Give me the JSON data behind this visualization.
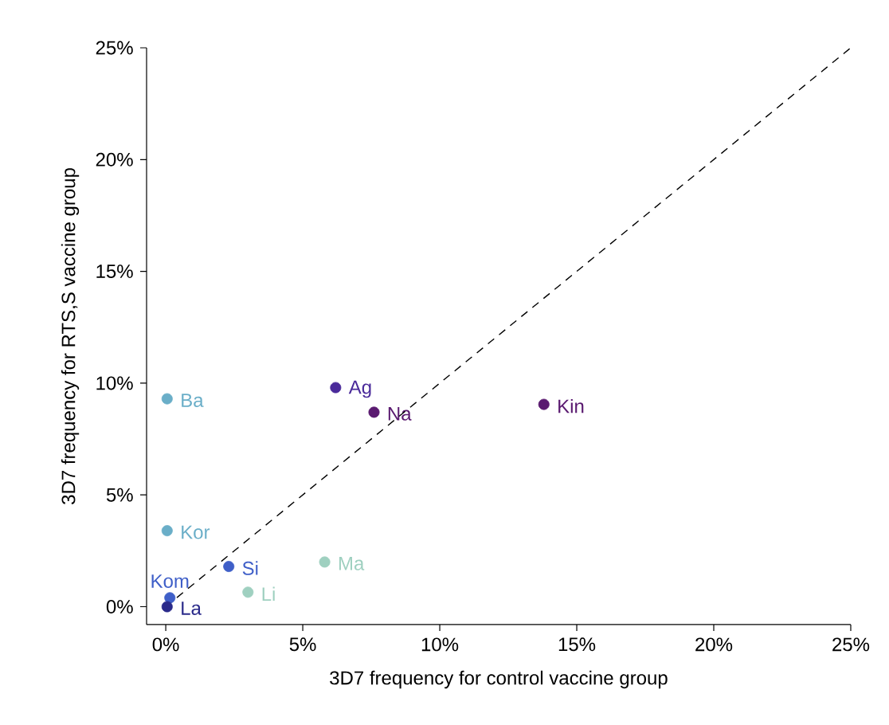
{
  "chart_data": {
    "type": "scatter",
    "xlabel": "3D7 frequency for control vaccine group",
    "ylabel": "3D7 frequency for RTS,S vaccine group",
    "marker": "circle",
    "grid": false,
    "xlim": [
      -0.7,
      25
    ],
    "ylim": [
      -0.8,
      25
    ],
    "xticks": [
      {
        "value": 0,
        "label": "0%"
      },
      {
        "value": 5,
        "label": "5%"
      },
      {
        "value": 10,
        "label": "10%"
      },
      {
        "value": 15,
        "label": "15%"
      },
      {
        "value": 20,
        "label": "20%"
      },
      {
        "value": 25,
        "label": "25%"
      }
    ],
    "yticks": [
      {
        "value": 0,
        "label": "0%"
      },
      {
        "value": 5,
        "label": "5%"
      },
      {
        "value": 10,
        "label": "10%"
      },
      {
        "value": 15,
        "label": "15%"
      },
      {
        "value": 20,
        "label": "20%"
      },
      {
        "value": 25,
        "label": "25%"
      }
    ],
    "series": [
      {
        "name": "Ba",
        "color": "#6aaec8",
        "x": [
          0.05
        ],
        "values": [
          9.3
        ]
      },
      {
        "name": "Kor",
        "color": "#6aaec8",
        "x": [
          0.05
        ],
        "values": [
          3.4
        ]
      },
      {
        "name": "Kom",
        "color": "#3f5fc8",
        "x": [
          0.15
        ],
        "values": [
          0.4
        ]
      },
      {
        "name": "La",
        "color": "#2a2a8a",
        "x": [
          0.05
        ],
        "values": [
          0
        ]
      },
      {
        "name": "Si",
        "color": "#3f5fc8",
        "x": [
          2.3
        ],
        "values": [
          1.8
        ]
      },
      {
        "name": "Li",
        "color": "#9fd0c0",
        "x": [
          3.0
        ],
        "values": [
          0.65
        ]
      },
      {
        "name": "Ma",
        "color": "#9fd0c0",
        "x": [
          5.8
        ],
        "values": [
          2.0
        ]
      },
      {
        "name": "Ag",
        "color": "#4a2a9a",
        "x": [
          6.2
        ],
        "values": [
          9.8
        ]
      },
      {
        "name": "Na",
        "color": "#5a1a70",
        "x": [
          7.6
        ],
        "values": [
          8.7
        ]
      },
      {
        "name": "Kin",
        "color": "#5a1a70",
        "x": [
          13.8
        ],
        "values": [
          9.05
        ]
      },
      {
        "type": "line",
        "color": "#000000",
        "line_style": "dashed",
        "marker": "none",
        "x": [
          0,
          25
        ],
        "values": [
          0,
          25
        ]
      }
    ]
  }
}
